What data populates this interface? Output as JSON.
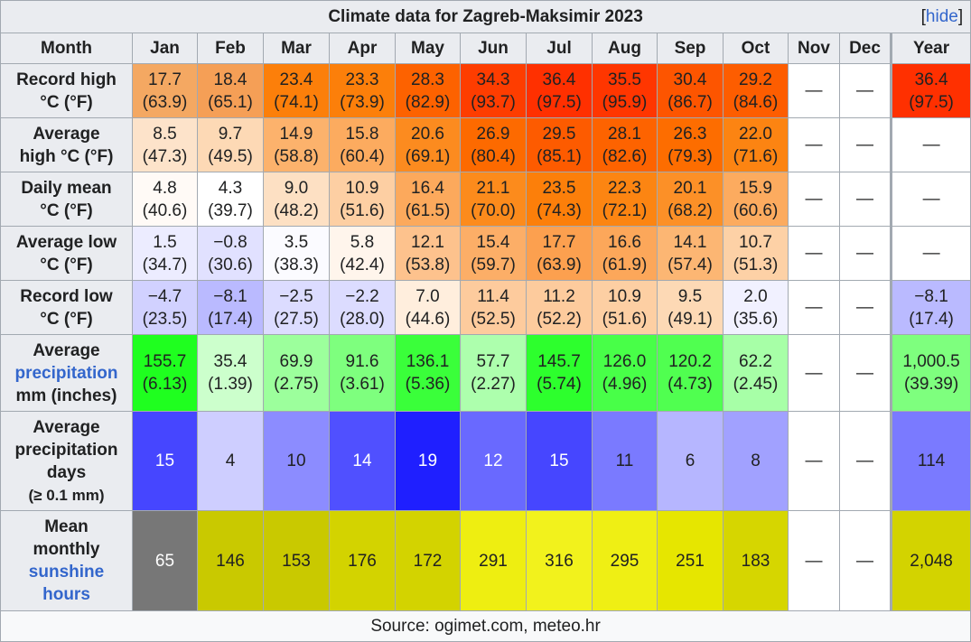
{
  "caption": "Climate data for Zagreb-Maksimir 2023",
  "hide_link": {
    "open": "[",
    "label": "hide",
    "close": "]"
  },
  "header": {
    "month_label": "Month",
    "months": [
      "Jan",
      "Feb",
      "Mar",
      "Apr",
      "May",
      "Jun",
      "Jul",
      "Aug",
      "Sep",
      "Oct",
      "Nov",
      "Dec"
    ],
    "year_label": "Year"
  },
  "rows": [
    {
      "key": "record-high",
      "label": [
        "Record high",
        "°C (°F)"
      ],
      "cells": [
        {
          "t": "17.7 (63.9)",
          "bg": "#f4a862"
        },
        {
          "t": "18.4 (65.1)",
          "bg": "#f59f56"
        },
        {
          "t": "23.4 (74.1)",
          "bg": "#fc7f0a"
        },
        {
          "t": "23.3 (73.9)",
          "bg": "#fc7f0a"
        },
        {
          "t": "28.3 (82.9)",
          "bg": "#fd6200"
        },
        {
          "t": "34.3 (93.7)",
          "bg": "#fe3d00"
        },
        {
          "t": "36.4 (97.5)",
          "bg": "#ff3000"
        },
        {
          "t": "35.5 (95.9)",
          "bg": "#ff3600"
        },
        {
          "t": "30.4 (86.7)",
          "bg": "#fd5500"
        },
        {
          "t": "29.2 (84.6)",
          "bg": "#fd5d00"
        },
        {
          "t": "—",
          "bg": "#ffffff"
        },
        {
          "t": "—",
          "bg": "#ffffff"
        }
      ],
      "year": {
        "t": "36.4 (97.5)",
        "bg": "#ff3000"
      }
    },
    {
      "key": "average-high",
      "label": [
        "Average",
        "high °C (°F)"
      ],
      "cells": [
        {
          "t": "8.5 (47.3)",
          "bg": "#fde3ca"
        },
        {
          "t": "9.7 (49.5)",
          "bg": "#fdd9b5"
        },
        {
          "t": "14.9 (58.8)",
          "bg": "#fcb26c"
        },
        {
          "t": "15.8 (60.4)",
          "bg": "#fcab5f"
        },
        {
          "t": "20.6 (69.1)",
          "bg": "#fc8b1f"
        },
        {
          "t": "26.9 (80.4)",
          "bg": "#fd6a00"
        },
        {
          "t": "29.5 (85.1)",
          "bg": "#fd5b00"
        },
        {
          "t": "28.1 (82.6)",
          "bg": "#fd6300"
        },
        {
          "t": "26.3 (79.3)",
          "bg": "#fd6d00"
        },
        {
          "t": "22.0 (71.6)",
          "bg": "#fc8412"
        },
        {
          "t": "—",
          "bg": "#ffffff"
        },
        {
          "t": "—",
          "bg": "#ffffff"
        }
      ],
      "year": {
        "t": "—",
        "bg": "#ffffff"
      }
    },
    {
      "key": "daily-mean",
      "label": [
        "Daily mean",
        "°C (°F)"
      ],
      "cells": [
        {
          "t": "4.8 (40.6)",
          "bg": "#fffaf6"
        },
        {
          "t": "4.3 (39.7)",
          "bg": "#ffffff"
        },
        {
          "t": "9.0 (48.2)",
          "bg": "#fde0c3"
        },
        {
          "t": "10.9 (51.6)",
          "bg": "#fdcfa3"
        },
        {
          "t": "16.4 (61.5)",
          "bg": "#fca95c"
        },
        {
          "t": "21.1 (70.0)",
          "bg": "#fc8b1c"
        },
        {
          "t": "23.5 (74.3)",
          "bg": "#fc7f0a"
        },
        {
          "t": "22.3 (72.1)",
          "bg": "#fc8512"
        },
        {
          "t": "20.1 (68.2)",
          "bg": "#fc9027"
        },
        {
          "t": "15.9 (60.6)",
          "bg": "#fcab5f"
        },
        {
          "t": "—",
          "bg": "#ffffff"
        },
        {
          "t": "—",
          "bg": "#ffffff"
        }
      ],
      "year": {
        "t": "—",
        "bg": "#ffffff"
      }
    },
    {
      "key": "average-low",
      "label": [
        "Average low",
        "°C (°F)"
      ],
      "cells": [
        {
          "t": "1.5 (34.7)",
          "bg": "#ececff"
        },
        {
          "t": "−0.8 (30.6)",
          "bg": "#e1e1ff"
        },
        {
          "t": "3.5 (38.3)",
          "bg": "#fbfbff"
        },
        {
          "t": "5.8 (42.4)",
          "bg": "#fff5ec"
        },
        {
          "t": "12.1 (53.8)",
          "bg": "#fdc28d"
        },
        {
          "t": "15.4 (59.7)",
          "bg": "#fcae67"
        },
        {
          "t": "17.7 (63.9)",
          "bg": "#fca04f"
        },
        {
          "t": "16.6 (61.9)",
          "bg": "#fca75a"
        },
        {
          "t": "14.1 (57.4)",
          "bg": "#fcb673"
        },
        {
          "t": "10.7 (51.3)",
          "bg": "#fdd1a6"
        },
        {
          "t": "—",
          "bg": "#ffffff"
        },
        {
          "t": "—",
          "bg": "#ffffff"
        }
      ],
      "year": {
        "t": "—",
        "bg": "#ffffff"
      }
    },
    {
      "key": "record-low",
      "label": [
        "Record low",
        "°C (°F)"
      ],
      "cells": [
        {
          "t": "−4.7 (23.5)",
          "bg": "#d1d1ff"
        },
        {
          "t": "−8.1 (17.4)",
          "bg": "#babaff"
        },
        {
          "t": "−2.5 (27.5)",
          "bg": "#dcdcff"
        },
        {
          "t": "−2.2 (28.0)",
          "bg": "#dcdcff"
        },
        {
          "t": "7.0 (44.6)",
          "bg": "#ffeedd"
        },
        {
          "t": "11.4 (52.5)",
          "bg": "#fdcb9d"
        },
        {
          "t": "11.2 (52.2)",
          "bg": "#fdcb9d"
        },
        {
          "t": "10.9 (51.6)",
          "bg": "#fdcfa3"
        },
        {
          "t": "9.5 (49.1)",
          "bg": "#fdd9b5"
        },
        {
          "t": "2.0 (35.6)",
          "bg": "#f1f1ff"
        },
        {
          "t": "—",
          "bg": "#ffffff"
        },
        {
          "t": "—",
          "bg": "#ffffff"
        }
      ],
      "year": {
        "t": "−8.1 (17.4)",
        "bg": "#babaff"
      }
    },
    {
      "key": "average-precipitation",
      "label": [
        "Average",
        "precipitation",
        "mm (inches)"
      ],
      "link_line": 1,
      "cells": [
        {
          "t": "155.7 (6.13)",
          "bg": "#1fff1f"
        },
        {
          "t": "35.4 (1.39)",
          "bg": "#ccffcc"
        },
        {
          "t": "69.9 (2.75)",
          "bg": "#9cff9c"
        },
        {
          "t": "91.6 (3.61)",
          "bg": "#7eff7e"
        },
        {
          "t": "136.1 (5.36)",
          "bg": "#3aff3a"
        },
        {
          "t": "57.7 (2.27)",
          "bg": "#adffad"
        },
        {
          "t": "145.7 (5.74)",
          "bg": "#2dff2d"
        },
        {
          "t": "126.0 (4.96)",
          "bg": "#48ff48"
        },
        {
          "t": "120.2 (4.73)",
          "bg": "#50ff50"
        },
        {
          "t": "62.2 (2.45)",
          "bg": "#a7ffa7"
        },
        {
          "t": "—",
          "bg": "#ffffff"
        },
        {
          "t": "—",
          "bg": "#ffffff"
        }
      ],
      "year": {
        "t": "1,000.5 (39.39)",
        "bg": "#7eff7e"
      }
    },
    {
      "key": "average-precipitation-days",
      "label": [
        "Average",
        "precipitation",
        "days",
        "(≥ 0.1 mm)"
      ],
      "small_line": 3,
      "cells": [
        {
          "t": "15",
          "bg": "#4646ff",
          "fg": "#ffffff"
        },
        {
          "t": "4",
          "bg": "#ceceff"
        },
        {
          "t": "10",
          "bg": "#8c8cff"
        },
        {
          "t": "14",
          "bg": "#5050ff",
          "fg": "#ffffff"
        },
        {
          "t": "19",
          "bg": "#1f1fff",
          "fg": "#ffffff"
        },
        {
          "t": "12",
          "bg": "#6969ff",
          "fg": "#ffffff"
        },
        {
          "t": "15",
          "bg": "#4646ff",
          "fg": "#ffffff"
        },
        {
          "t": "11",
          "bg": "#7a7aff"
        },
        {
          "t": "6",
          "bg": "#b6b6ff"
        },
        {
          "t": "8",
          "bg": "#a1a1ff"
        },
        {
          "t": "—",
          "bg": "#ffffff"
        },
        {
          "t": "—",
          "bg": "#ffffff"
        }
      ],
      "year": {
        "t": "114",
        "bg": "#7a7aff"
      }
    },
    {
      "key": "mean-monthly-sunshine-hours",
      "label": [
        "Mean",
        "monthly",
        "sunshine",
        "hours"
      ],
      "link_line": 2,
      "link_line2": 3,
      "cells": [
        {
          "t": "65",
          "bg": "#777777",
          "fg": "#ffffff"
        },
        {
          "t": "146",
          "bg": "#c9c900"
        },
        {
          "t": "153",
          "bg": "#c9c900"
        },
        {
          "t": "176",
          "bg": "#d3d300"
        },
        {
          "t": "172",
          "bg": "#d3d300"
        },
        {
          "t": "291",
          "bg": "#eeee11"
        },
        {
          "t": "316",
          "bg": "#f2f21c"
        },
        {
          "t": "295",
          "bg": "#efef14"
        },
        {
          "t": "251",
          "bg": "#e6e600"
        },
        {
          "t": "183",
          "bg": "#d6d600"
        },
        {
          "t": "—",
          "bg": "#ffffff"
        },
        {
          "t": "—",
          "bg": "#ffffff"
        }
      ],
      "year": {
        "t": "2,048",
        "bg": "#d3d300"
      }
    }
  ],
  "source": "Source: ogimet.com, meteo.hr"
}
